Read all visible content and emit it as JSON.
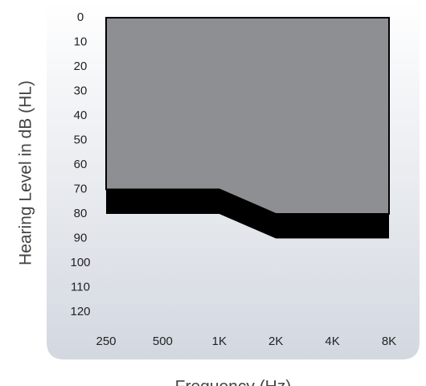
{
  "chart_data": {
    "type": "area",
    "x_label": "Frequency (Hz)",
    "y_label": "Hearing Level in dB (HL)",
    "categories": [
      "250",
      "500",
      "1K",
      "2K",
      "4K",
      "8K"
    ],
    "series": [
      {
        "color": "#8e8f92",
        "values": [
          70,
          70,
          70,
          80,
          80,
          80
        ]
      },
      {
        "color": "#000000",
        "values": [
          80,
          80,
          80,
          90,
          90,
          90
        ]
      }
    ],
    "ylim": [
      120,
      0
    ],
    "yticks": [
      0,
      10,
      20,
      30,
      40,
      50,
      60,
      70,
      80,
      90,
      100,
      110,
      120
    ]
  }
}
